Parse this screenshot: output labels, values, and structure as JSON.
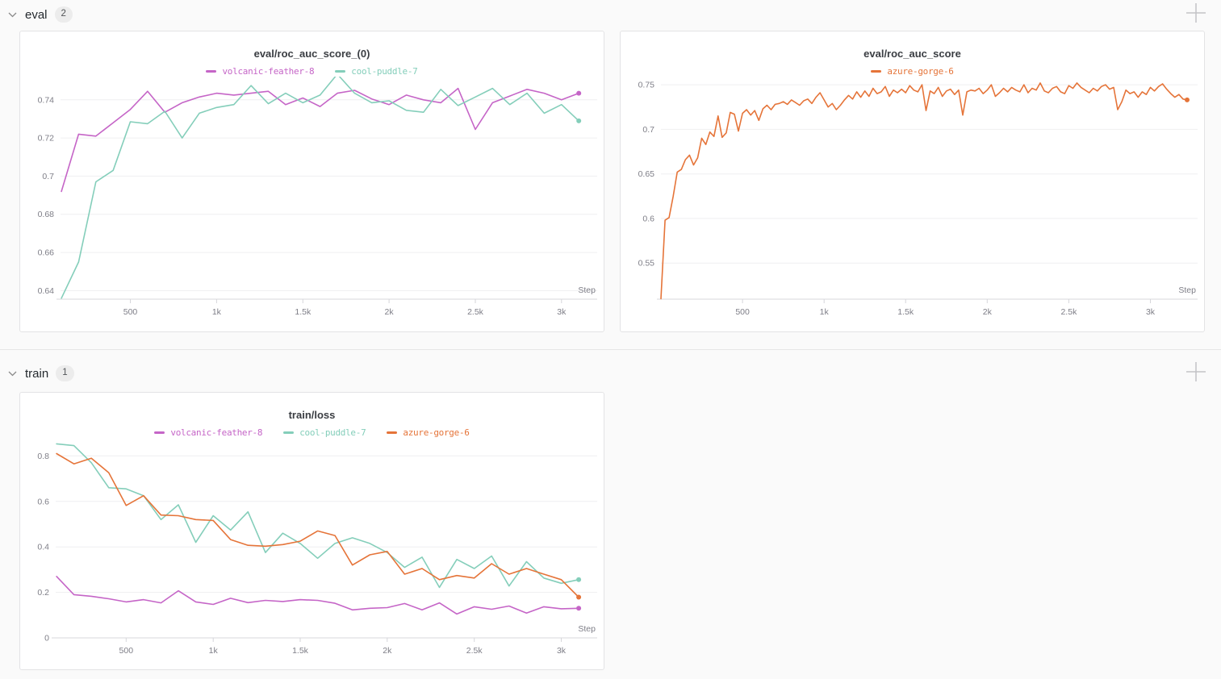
{
  "sections": [
    {
      "label": "eval",
      "count": "2"
    },
    {
      "label": "train",
      "count": "1"
    }
  ],
  "icons": {
    "collapse": "chevron-down",
    "add_panel": "plus"
  },
  "chart_data": [
    {
      "type": "line",
      "title": "eval/roc_auc_score_(0)",
      "xlabel": "Step",
      "xticks": [
        500,
        1000,
        1500,
        2000,
        2500,
        3000
      ],
      "xtick_labels": [
        "500",
        "1k",
        "1.5k",
        "2k",
        "2.5k",
        "3k"
      ],
      "yticks": [
        0.74,
        0.72,
        0.7,
        0.68,
        0.66,
        0.64
      ],
      "xlim": [
        95,
        3160
      ],
      "ylim": [
        0.6355,
        0.7505
      ],
      "grid": true,
      "legend_position": "top",
      "x": [
        100,
        200,
        300,
        400,
        500,
        600,
        700,
        800,
        900,
        1000,
        1100,
        1200,
        1300,
        1400,
        1500,
        1600,
        1700,
        1800,
        1900,
        2000,
        2100,
        2200,
        2300,
        2400,
        2500,
        2600,
        2700,
        2800,
        2900,
        3000,
        3100
      ],
      "series": [
        {
          "name": "volcanic-feather-8",
          "color": "#C565C7",
          "values": [
            0.692,
            0.722,
            0.721,
            0.728,
            0.735,
            0.7445,
            0.7335,
            0.7385,
            0.7415,
            0.7435,
            0.7425,
            0.7435,
            0.7445,
            0.7375,
            0.741,
            0.7365,
            0.7435,
            0.745,
            0.7405,
            0.7375,
            0.7425,
            0.74,
            0.7385,
            0.746,
            0.7245,
            0.7385,
            0.742,
            0.7455,
            0.7435,
            0.74,
            0.7435
          ]
        },
        {
          "name": "cool-puddle-7",
          "color": "#84CEBA",
          "values": [
            0.636,
            0.655,
            0.697,
            0.703,
            0.7285,
            0.7275,
            0.734,
            0.72,
            0.733,
            0.736,
            0.7375,
            0.7475,
            0.738,
            0.7435,
            0.7385,
            0.7425,
            0.7535,
            0.7435,
            0.7385,
            0.7395,
            0.7345,
            0.7335,
            0.7455,
            0.737,
            0.7415,
            0.746,
            0.7375,
            0.7435,
            0.733,
            0.7375,
            0.729
          ]
        }
      ]
    },
    {
      "type": "line",
      "title": "eval/roc_auc_score",
      "xlabel": "Step",
      "xticks": [
        500,
        1000,
        1500,
        2000,
        2500,
        3000
      ],
      "xtick_labels": [
        "500",
        "1k",
        "1.5k",
        "2k",
        "2.5k",
        "3k"
      ],
      "yticks": [
        0.75,
        0.7,
        0.65,
        0.6,
        0.55
      ],
      "xlim": [
        0,
        3240
      ],
      "ylim": [
        0.5095,
        0.7555
      ],
      "grid": true,
      "legend_position": "top",
      "x_start": 0,
      "x_step": 25,
      "series": [
        {
          "name": "azure-gorge-6",
          "color": "#E57439",
          "values": [
            0.51,
            0.598,
            0.601,
            0.625,
            0.652,
            0.655,
            0.666,
            0.671,
            0.66,
            0.668,
            0.69,
            0.683,
            0.697,
            0.692,
            0.715,
            0.691,
            0.696,
            0.719,
            0.717,
            0.698,
            0.718,
            0.722,
            0.716,
            0.721,
            0.71,
            0.723,
            0.727,
            0.722,
            0.728,
            0.729,
            0.731,
            0.728,
            0.733,
            0.73,
            0.727,
            0.732,
            0.734,
            0.729,
            0.736,
            0.741,
            0.733,
            0.725,
            0.729,
            0.722,
            0.727,
            0.733,
            0.738,
            0.734,
            0.742,
            0.736,
            0.743,
            0.737,
            0.746,
            0.74,
            0.742,
            0.748,
            0.737,
            0.744,
            0.741,
            0.745,
            0.741,
            0.749,
            0.744,
            0.742,
            0.75,
            0.721,
            0.743,
            0.74,
            0.747,
            0.737,
            0.743,
            0.745,
            0.739,
            0.744,
            0.716,
            0.742,
            0.744,
            0.743,
            0.746,
            0.74,
            0.744,
            0.75,
            0.737,
            0.741,
            0.746,
            0.742,
            0.747,
            0.744,
            0.742,
            0.75,
            0.741,
            0.746,
            0.744,
            0.752,
            0.743,
            0.741,
            0.746,
            0.748,
            0.742,
            0.74,
            0.749,
            0.746,
            0.752,
            0.747,
            0.744,
            0.741,
            0.746,
            0.743,
            0.748,
            0.75,
            0.745,
            0.747,
            0.722,
            0.731,
            0.744,
            0.74,
            0.742,
            0.736,
            0.742,
            0.739,
            0.747,
            0.743,
            0.748,
            0.751,
            0.745,
            0.74,
            0.736,
            0.739,
            0.734,
            0.733
          ]
        }
      ]
    },
    {
      "type": "line",
      "title": "train/loss",
      "xlabel": "Step",
      "xticks": [
        500,
        1000,
        1500,
        2000,
        2500,
        3000
      ],
      "xtick_labels": [
        "500",
        "1k",
        "1.5k",
        "2k",
        "2.5k",
        "3k"
      ],
      "yticks": [
        0.8,
        0.6,
        0.4,
        0.2,
        0
      ],
      "xlim": [
        95,
        3160
      ],
      "ylim": [
        0,
        0.865
      ],
      "grid": true,
      "legend_position": "top",
      "x": [
        100,
        200,
        300,
        400,
        500,
        600,
        700,
        800,
        900,
        1000,
        1100,
        1200,
        1300,
        1400,
        1500,
        1600,
        1700,
        1800,
        1900,
        2000,
        2100,
        2200,
        2300,
        2400,
        2500,
        2600,
        2700,
        2800,
        2900,
        3000,
        3100
      ],
      "series": [
        {
          "name": "volcanic-feather-8",
          "color": "#C565C7",
          "values": [
            0.27,
            0.19,
            0.183,
            0.172,
            0.158,
            0.168,
            0.154,
            0.207,
            0.158,
            0.147,
            0.174,
            0.155,
            0.165,
            0.16,
            0.168,
            0.165,
            0.152,
            0.123,
            0.13,
            0.133,
            0.151,
            0.123,
            0.154,
            0.105,
            0.137,
            0.126,
            0.14,
            0.109,
            0.137,
            0.128,
            0.13
          ]
        },
        {
          "name": "cool-puddle-7",
          "color": "#84CEBA",
          "values": [
            0.853,
            0.845,
            0.77,
            0.66,
            0.655,
            0.625,
            0.52,
            0.585,
            0.42,
            0.537,
            0.474,
            0.554,
            0.375,
            0.46,
            0.415,
            0.35,
            0.415,
            0.44,
            0.415,
            0.375,
            0.31,
            0.355,
            0.222,
            0.345,
            0.305,
            0.36,
            0.228,
            0.335,
            0.263,
            0.24,
            0.256
          ]
        },
        {
          "name": "azure-gorge-6",
          "color": "#E57439",
          "values": [
            0.81,
            0.765,
            0.79,
            0.726,
            0.582,
            0.625,
            0.54,
            0.537,
            0.52,
            0.516,
            0.432,
            0.407,
            0.403,
            0.41,
            0.425,
            0.47,
            0.45,
            0.32,
            0.365,
            0.38,
            0.28,
            0.305,
            0.256,
            0.274,
            0.263,
            0.326,
            0.28,
            0.305,
            0.28,
            0.256,
            0.179
          ]
        }
      ]
    }
  ],
  "colors": {
    "page_background": "#fafafa",
    "panel_background": "#ffffff",
    "panel_border": "#e3e3e5",
    "gridline": "#efeff1",
    "axis_line": "#dfdfe2",
    "tick_text": "#7e7e87",
    "run_magenta": "#C565C7",
    "run_teal": "#84CEBA",
    "run_orange": "#E57439"
  }
}
